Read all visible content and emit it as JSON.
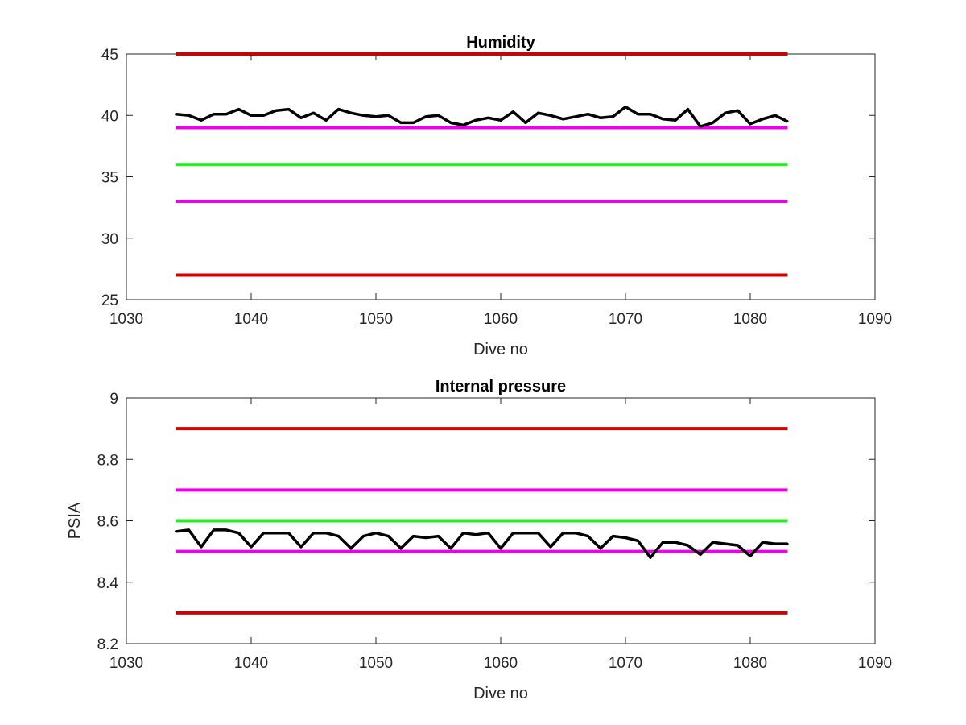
{
  "figure": {
    "background": "#ffffff",
    "axis_color": "#262626"
  },
  "chart_data": [
    {
      "type": "line",
      "title": "Humidity",
      "xlabel": "Dive no",
      "ylabel": "",
      "xlim": [
        1030,
        1090
      ],
      "ylim": [
        25,
        45
      ],
      "xticks": [
        1030,
        1040,
        1050,
        1060,
        1070,
        1080,
        1090
      ],
      "yticks": [
        25,
        30,
        35,
        40,
        45
      ],
      "grid": false,
      "series": [
        {
          "color": "#000000",
          "x": [
            1034,
            1035,
            1036,
            1037,
            1038,
            1039,
            1040,
            1041,
            1042,
            1043,
            1044,
            1045,
            1046,
            1047,
            1048,
            1049,
            1050,
            1051,
            1052,
            1053,
            1054,
            1055,
            1056,
            1057,
            1058,
            1059,
            1060,
            1061,
            1062,
            1063,
            1064,
            1065,
            1066,
            1067,
            1068,
            1069,
            1070,
            1071,
            1072,
            1073,
            1074,
            1075,
            1076,
            1077,
            1078,
            1079,
            1080,
            1081,
            1082,
            1083
          ],
          "values": [
            40.1,
            40.0,
            39.6,
            40.1,
            40.1,
            40.5,
            40.0,
            40.0,
            40.4,
            40.5,
            39.8,
            40.2,
            39.6,
            40.5,
            40.2,
            40.0,
            39.9,
            40.0,
            39.4,
            39.4,
            39.9,
            40.0,
            39.4,
            39.2,
            39.6,
            39.8,
            39.6,
            40.3,
            39.4,
            40.2,
            40.0,
            39.7,
            39.9,
            40.1,
            39.8,
            39.9,
            40.7,
            40.1,
            40.1,
            39.7,
            39.6,
            40.5,
            39.1,
            39.4,
            40.2,
            40.4,
            39.3,
            39.7,
            40.0,
            39.5
          ]
        }
      ],
      "reference_lines": [
        {
          "value": 45,
          "color": "#d40000"
        },
        {
          "value": 39,
          "color": "#ee00ee"
        },
        {
          "value": 36,
          "color": "#22ee22"
        },
        {
          "value": 33,
          "color": "#ee00ee"
        },
        {
          "value": 27,
          "color": "#d40000"
        }
      ],
      "reference_x_range": [
        1034,
        1083
      ]
    },
    {
      "type": "line",
      "title": "Internal pressure",
      "xlabel": "Dive no",
      "ylabel": "PSIA",
      "xlim": [
        1030,
        1090
      ],
      "ylim": [
        8.2,
        9.0
      ],
      "xticks": [
        1030,
        1040,
        1050,
        1060,
        1070,
        1080,
        1090
      ],
      "yticks": [
        "8.2",
        "8.4",
        "8.6",
        "8.8",
        "9"
      ],
      "grid": false,
      "series": [
        {
          "color": "#000000",
          "x": [
            1034,
            1035,
            1036,
            1037,
            1038,
            1039,
            1040,
            1041,
            1042,
            1043,
            1044,
            1045,
            1046,
            1047,
            1048,
            1049,
            1050,
            1051,
            1052,
            1053,
            1054,
            1055,
            1056,
            1057,
            1058,
            1059,
            1060,
            1061,
            1062,
            1063,
            1064,
            1065,
            1066,
            1067,
            1068,
            1069,
            1070,
            1071,
            1072,
            1073,
            1074,
            1075,
            1076,
            1077,
            1078,
            1079,
            1080,
            1081,
            1082,
            1083
          ],
          "values": [
            8.565,
            8.57,
            8.515,
            8.57,
            8.57,
            8.56,
            8.515,
            8.56,
            8.56,
            8.56,
            8.515,
            8.56,
            8.56,
            8.55,
            8.51,
            8.55,
            8.56,
            8.55,
            8.51,
            8.55,
            8.545,
            8.55,
            8.51,
            8.56,
            8.555,
            8.56,
            8.51,
            8.56,
            8.56,
            8.56,
            8.515,
            8.56,
            8.56,
            8.55,
            8.51,
            8.55,
            8.545,
            8.535,
            8.48,
            8.53,
            8.53,
            8.52,
            8.49,
            8.53,
            8.525,
            8.52,
            8.485,
            8.53,
            8.525,
            8.525
          ]
        }
      ],
      "reference_lines": [
        {
          "value": 8.9,
          "color": "#d40000"
        },
        {
          "value": 8.7,
          "color": "#ee00ee"
        },
        {
          "value": 8.6,
          "color": "#22ee22"
        },
        {
          "value": 8.5,
          "color": "#ee00ee"
        },
        {
          "value": 8.3,
          "color": "#d40000"
        }
      ],
      "reference_x_range": [
        1034,
        1083
      ]
    }
  ]
}
